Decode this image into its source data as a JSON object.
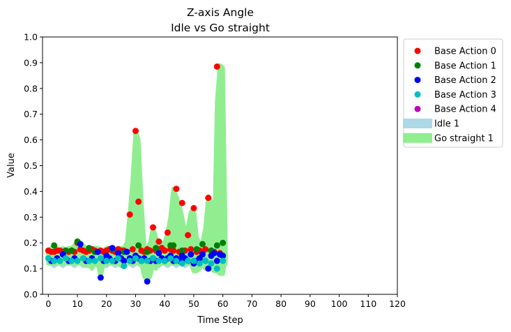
{
  "chart_data": {
    "type": "scatter",
    "title": "Z-axis Angle",
    "subtitle": "Idle vs Go straight",
    "xlabel": "Time Step",
    "ylabel": "Value",
    "xlim": [
      -2,
      120
    ],
    "ylim": [
      0,
      1.0
    ],
    "xticks": [
      "0",
      "10",
      "20",
      "30",
      "40",
      "50",
      "60",
      "70",
      "80",
      "90",
      "100",
      "110",
      "120"
    ],
    "yticks": [
      "0.0",
      "0.1",
      "0.2",
      "0.3",
      "0.4",
      "0.5",
      "0.6",
      "0.7",
      "0.8",
      "0.9",
      "1.0"
    ],
    "legend_position": "outside-right",
    "areas": [
      {
        "name": "Idle 1",
        "color": "#add8e6",
        "x": [
          0,
          1,
          2,
          3,
          4,
          5,
          6,
          7,
          8,
          9,
          10,
          11,
          12,
          13,
          14,
          15,
          16,
          17,
          18,
          19,
          20,
          21,
          22,
          23,
          24,
          25,
          26,
          27,
          28,
          29,
          30,
          31,
          32,
          33,
          34,
          35,
          36,
          37,
          38,
          39,
          40,
          41,
          42,
          43,
          44,
          45,
          46,
          47,
          48,
          49,
          50,
          51,
          52,
          53,
          54,
          55,
          56,
          57,
          58,
          59,
          60,
          61
        ],
        "upper": [
          0.15,
          0.15,
          0.16,
          0.15,
          0.14,
          0.15,
          0.15,
          0.16,
          0.15,
          0.15,
          0.16,
          0.15,
          0.15,
          0.16,
          0.15,
          0.14,
          0.15,
          0.15,
          0.16,
          0.15,
          0.15,
          0.16,
          0.15,
          0.14,
          0.15,
          0.16,
          0.15,
          0.15,
          0.15,
          0.16,
          0.15,
          0.15,
          0.15,
          0.16,
          0.15,
          0.15,
          0.15,
          0.16,
          0.15,
          0.15,
          0.15,
          0.15,
          0.16,
          0.15,
          0.15,
          0.15,
          0.15,
          0.16,
          0.15,
          0.15,
          0.15,
          0.15,
          0.15,
          0.16,
          0.15,
          0.15,
          0.16,
          0.15,
          0.15,
          0.15,
          0.15,
          0.15
        ],
        "lower": [
          0.12,
          0.12,
          0.11,
          0.12,
          0.12,
          0.11,
          0.12,
          0.12,
          0.12,
          0.11,
          0.12,
          0.12,
          0.11,
          0.12,
          0.11,
          0.12,
          0.12,
          0.11,
          0.12,
          0.12,
          0.11,
          0.12,
          0.12,
          0.11,
          0.12,
          0.12,
          0.11,
          0.12,
          0.12,
          0.11,
          0.12,
          0.12,
          0.11,
          0.12,
          0.12,
          0.11,
          0.12,
          0.12,
          0.11,
          0.12,
          0.12,
          0.11,
          0.12,
          0.12,
          0.11,
          0.12,
          0.12,
          0.11,
          0.12,
          0.12,
          0.11,
          0.12,
          0.12,
          0.11,
          0.12,
          0.11,
          0.1,
          0.11,
          0.09,
          0.09,
          0.1,
          0.12
        ]
      },
      {
        "name": "Go straight 1",
        "color": "#90ee90",
        "x": [
          0,
          1,
          2,
          3,
          4,
          5,
          6,
          7,
          8,
          9,
          10,
          11,
          12,
          13,
          14,
          15,
          16,
          17,
          18,
          19,
          20,
          21,
          22,
          23,
          24,
          25,
          26,
          27,
          28,
          29,
          30,
          31,
          32,
          33,
          34,
          35,
          36,
          37,
          38,
          39,
          40,
          41,
          42,
          43,
          44,
          45,
          46,
          47,
          48,
          49,
          50,
          51,
          52,
          53,
          54,
          55,
          56,
          57,
          58,
          59,
          60,
          61
        ],
        "upper": [
          0.17,
          0.18,
          0.19,
          0.18,
          0.17,
          0.18,
          0.17,
          0.18,
          0.18,
          0.19,
          0.21,
          0.2,
          0.19,
          0.18,
          0.17,
          0.18,
          0.18,
          0.18,
          0.17,
          0.17,
          0.18,
          0.18,
          0.18,
          0.17,
          0.18,
          0.18,
          0.18,
          0.2,
          0.31,
          0.45,
          0.635,
          0.6,
          0.36,
          0.19,
          0.18,
          0.2,
          0.26,
          0.22,
          0.2,
          0.2,
          0.2,
          0.24,
          0.3,
          0.41,
          0.38,
          0.35,
          0.3,
          0.24,
          0.26,
          0.32,
          0.33,
          0.22,
          0.2,
          0.2,
          0.26,
          0.38,
          0.36,
          0.2,
          0.75,
          0.89,
          0.88,
          0.15
        ],
        "lower": [
          0.12,
          0.12,
          0.12,
          0.12,
          0.12,
          0.12,
          0.12,
          0.12,
          0.12,
          0.12,
          0.12,
          0.12,
          0.12,
          0.11,
          0.12,
          0.1,
          0.12,
          0.12,
          0.07,
          0.12,
          0.12,
          0.12,
          0.12,
          0.12,
          0.12,
          0.11,
          0.12,
          0.12,
          0.12,
          0.12,
          0.12,
          0.12,
          0.12,
          0.07,
          0.05,
          0.07,
          0.12,
          0.1,
          0.12,
          0.12,
          0.12,
          0.12,
          0.12,
          0.12,
          0.12,
          0.12,
          0.12,
          0.12,
          0.12,
          0.12,
          0.09,
          0.09,
          0.1,
          0.12,
          0.1,
          0.1,
          0.1,
          0.09,
          0.09,
          0.08,
          0.08,
          0.15
        ]
      }
    ],
    "series": [
      {
        "name": "Base Action 0",
        "color": "#ff0000",
        "x": [
          0,
          1,
          2,
          3,
          4,
          5,
          6,
          7,
          8,
          9,
          10,
          11,
          12,
          13,
          14,
          15,
          16,
          17,
          18,
          19,
          20,
          21,
          22,
          23,
          24,
          25,
          26,
          27,
          28,
          29,
          30,
          31,
          32,
          33,
          34,
          35,
          36,
          37,
          38,
          39,
          40,
          41,
          42,
          43,
          44,
          45,
          46,
          47,
          48,
          49,
          50,
          51,
          52,
          53,
          54,
          55,
          56,
          57,
          58,
          59
        ],
        "y": [
          0.17,
          0.165,
          0.165,
          0.17,
          0.17,
          0.165,
          0.17,
          0.165,
          0.17,
          0.165,
          0.2,
          0.175,
          0.17,
          0.165,
          0.17,
          0.175,
          0.17,
          0.165,
          0.17,
          0.165,
          0.17,
          0.175,
          0.17,
          0.165,
          0.175,
          0.17,
          0.17,
          0.165,
          0.31,
          0.175,
          0.635,
          0.36,
          0.17,
          0.165,
          0.175,
          0.17,
          0.26,
          0.17,
          0.205,
          0.18,
          0.17,
          0.24,
          0.175,
          0.17,
          0.41,
          0.165,
          0.355,
          0.17,
          0.23,
          0.175,
          0.335,
          0.165,
          0.17,
          0.16,
          0.175,
          0.375,
          0.17,
          0.165,
          0.885,
          0.16
        ]
      },
      {
        "name": "Base Action 1",
        "color": "#008000",
        "x": [
          2,
          6,
          8,
          10,
          14,
          16,
          22,
          26,
          31,
          34,
          37,
          42,
          43,
          46,
          51,
          53,
          56,
          58,
          60
        ],
        "y": [
          0.19,
          0.17,
          0.17,
          0.205,
          0.18,
          0.165,
          0.175,
          0.165,
          0.19,
          0.165,
          0.18,
          0.19,
          0.19,
          0.17,
          0.175,
          0.195,
          0.17,
          0.19,
          0.2
        ]
      },
      {
        "name": "Base Action 2",
        "color": "#0000ff",
        "x": [
          1,
          3,
          5,
          7,
          9,
          11,
          13,
          15,
          17,
          18,
          19,
          20,
          21,
          22,
          23,
          24,
          25,
          26,
          27,
          28,
          29,
          30,
          31,
          32,
          33,
          34,
          35,
          36,
          37,
          38,
          39,
          40,
          41,
          42,
          43,
          44,
          45,
          46,
          47,
          48,
          49,
          50,
          51,
          52,
          53,
          54,
          55,
          56,
          57,
          58,
          59,
          60
        ],
        "y": [
          0.13,
          0.14,
          0.155,
          0.13,
          0.14,
          0.195,
          0.13,
          0.14,
          0.165,
          0.065,
          0.13,
          0.15,
          0.14,
          0.18,
          0.13,
          0.16,
          0.14,
          0.13,
          0.165,
          0.14,
          0.13,
          0.15,
          0.14,
          0.13,
          0.14,
          0.05,
          0.13,
          0.14,
          0.13,
          0.16,
          0.14,
          0.13,
          0.14,
          0.15,
          0.13,
          0.14,
          0.13,
          0.15,
          0.14,
          0.13,
          0.155,
          0.12,
          0.13,
          0.14,
          0.155,
          0.13,
          0.1,
          0.15,
          0.16,
          0.13,
          0.155,
          0.15
        ]
      },
      {
        "name": "Base Action 3",
        "color": "#00bfbf",
        "x": [
          0,
          2,
          4,
          6,
          8,
          10,
          12,
          14,
          16,
          18,
          20,
          22,
          24,
          26,
          28,
          30,
          32,
          34,
          36,
          38,
          40,
          42,
          44,
          46,
          48,
          50,
          52,
          54,
          56,
          58,
          60
        ],
        "y": [
          0.14,
          0.13,
          0.13,
          0.14,
          0.13,
          0.13,
          0.14,
          0.13,
          0.13,
          0.14,
          0.13,
          0.13,
          0.14,
          0.11,
          0.13,
          0.14,
          0.13,
          0.13,
          0.14,
          0.13,
          0.13,
          0.14,
          0.13,
          0.12,
          0.13,
          0.13,
          0.12,
          0.13,
          0.12,
          0.1,
          0.13
        ]
      },
      {
        "name": "Base Action 4",
        "color": "#bf00bf",
        "x": [],
        "y": []
      }
    ]
  },
  "legend": {
    "items": [
      {
        "label": "Base Action 0",
        "color": "#ff0000",
        "kind": "marker"
      },
      {
        "label": "Base Action 1",
        "color": "#008000",
        "kind": "marker"
      },
      {
        "label": "Base Action 2",
        "color": "#0000ff",
        "kind": "marker"
      },
      {
        "label": "Base Action 3",
        "color": "#00bfbf",
        "kind": "marker"
      },
      {
        "label": "Base Action 4",
        "color": "#bf00bf",
        "kind": "marker"
      },
      {
        "label": "Idle 1",
        "color": "#add8e6",
        "kind": "patch"
      },
      {
        "label": "Go straight 1",
        "color": "#90ee90",
        "kind": "patch"
      }
    ]
  }
}
